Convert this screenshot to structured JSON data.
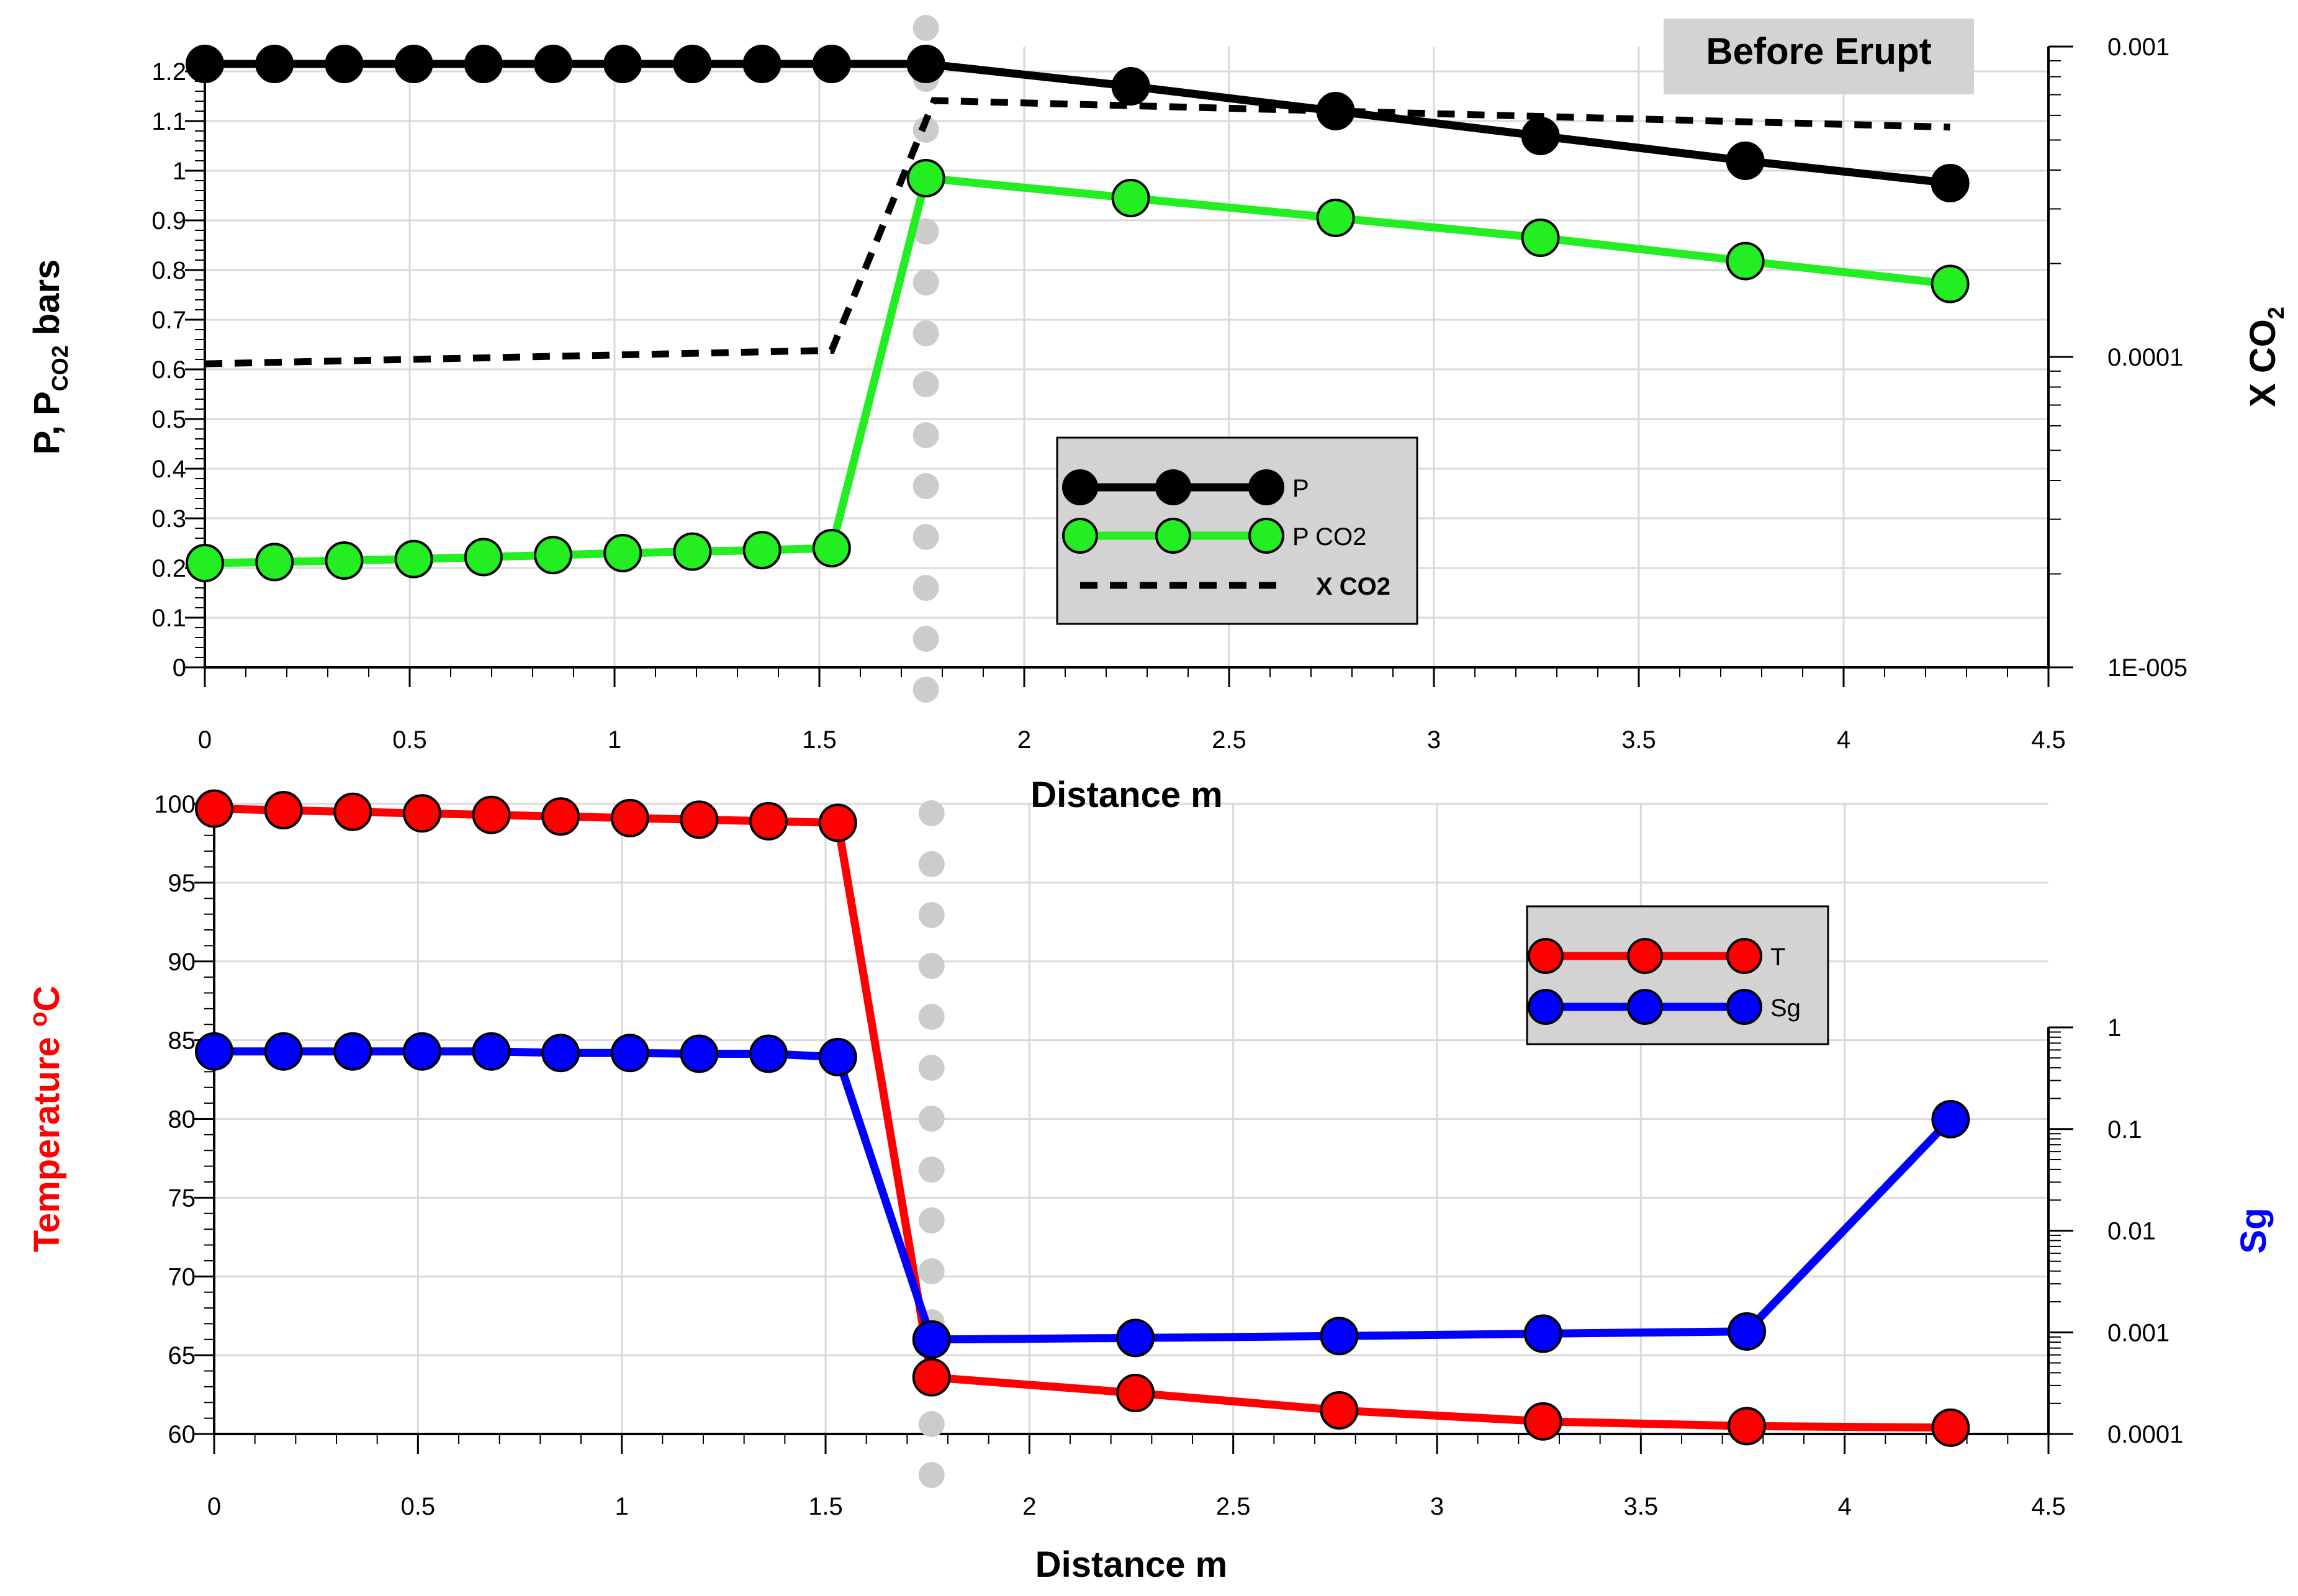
{
  "chart_data": [
    {
      "id": "top",
      "type": "line",
      "title": "Before Erupt",
      "xlabel": "Distance m",
      "ylabel_parts": [
        "P, P",
        "CO2",
        " bars"
      ],
      "y2label_parts": [
        "X CO",
        "2"
      ],
      "xlim": [
        0,
        4.5
      ],
      "ylim": [
        0,
        1.25
      ],
      "y2lim": [
        1e-05,
        0.001
      ],
      "y2scale": "log",
      "x_ticks": [
        "0",
        "0.5",
        "1",
        "1.5",
        "2",
        "2.5",
        "3",
        "3.5",
        "4",
        "4.5"
      ],
      "y_ticks": [
        "0",
        "0.1",
        "0.2",
        "0.3",
        "0.4",
        "0.5",
        "0.6",
        "0.7",
        "0.8",
        "0.9",
        "1",
        "1.1",
        "1.2"
      ],
      "y2_ticks": [
        "1E-005",
        "0.0001",
        "0.001"
      ],
      "grid": true,
      "legend_position": "center-right",
      "series": [
        {
          "name": "P",
          "color": "#000000",
          "marker": true,
          "axis": "left",
          "x": [
            0,
            0.17,
            0.34,
            0.51,
            0.68,
            0.85,
            1.02,
            1.19,
            1.36,
            1.53,
            1.76,
            2.26,
            2.76,
            3.26,
            3.76,
            4.26
          ],
          "y": [
            1.215,
            1.215,
            1.215,
            1.215,
            1.215,
            1.215,
            1.215,
            1.215,
            1.215,
            1.215,
            1.215,
            1.17,
            1.12,
            1.07,
            1.02,
            0.975
          ]
        },
        {
          "name": "P CO2",
          "color": "#22ee22",
          "marker": true,
          "axis": "left",
          "x": [
            0,
            0.17,
            0.34,
            0.51,
            0.68,
            0.85,
            1.02,
            1.19,
            1.36,
            1.53,
            1.76,
            2.26,
            2.76,
            3.26,
            3.76,
            4.26
          ],
          "y": [
            0.21,
            0.212,
            0.215,
            0.218,
            0.222,
            0.226,
            0.23,
            0.233,
            0.236,
            0.24,
            0.985,
            0.945,
            0.905,
            0.865,
            0.818,
            0.772
          ]
        },
        {
          "name": "X CO2",
          "color": "#000000",
          "marker": false,
          "dashed": true,
          "axis": "right",
          "x": [
            0,
            1.53,
            1.78,
            4.26
          ],
          "y": [
            9.5e-05,
            0.000105,
            0.00067,
            0.00055
          ]
        }
      ],
      "annotations": [
        {
          "type": "vline-dotted",
          "x": 1.76,
          "color": "#cccccc"
        }
      ]
    },
    {
      "id": "bottom",
      "type": "line",
      "xlabel": "Distance m",
      "ylabel_parts": [
        "Temperature ",
        "o",
        "C"
      ],
      "y2label": "Sg",
      "xlim": [
        0,
        4.5
      ],
      "ylim": [
        60,
        100
      ],
      "y2lim": [
        0.0001,
        1
      ],
      "y2scale": "log",
      "x_ticks": [
        "0",
        "0.5",
        "1",
        "1.5",
        "2",
        "2.5",
        "3",
        "3.5",
        "4",
        "4.5"
      ],
      "y_ticks": [
        "60",
        "65",
        "70",
        "75",
        "80",
        "85",
        "90",
        "95",
        "100"
      ],
      "y2_ticks": [
        "0.0001",
        "0.001",
        "0.01",
        "0.1",
        "1"
      ],
      "grid": true,
      "legend_position": "top-right",
      "series": [
        {
          "name": "T",
          "color": "#ff0000",
          "marker": true,
          "axis": "left",
          "x": [
            0,
            0.17,
            0.34,
            0.51,
            0.68,
            0.85,
            1.02,
            1.19,
            1.36,
            1.53,
            1.76,
            2.26,
            2.76,
            3.26,
            3.76,
            4.26
          ],
          "y": [
            99.7,
            99.6,
            99.5,
            99.4,
            99.3,
            99.2,
            99.1,
            99.0,
            98.9,
            98.8,
            63.6,
            62.6,
            61.5,
            60.8,
            60.5,
            60.4
          ]
        },
        {
          "name": "Sg",
          "color": "#0000ff",
          "marker": true,
          "axis": "right",
          "x": [
            0,
            0.17,
            0.34,
            0.51,
            0.68,
            0.85,
            1.02,
            1.19,
            1.36,
            1.53,
            1.76,
            2.26,
            2.76,
            3.26,
            3.76,
            4.26
          ],
          "y": [
            0.58,
            0.58,
            0.58,
            0.58,
            0.58,
            0.56,
            0.56,
            0.55,
            0.55,
            0.51,
            0.00085,
            0.00088,
            0.00092,
            0.00097,
            0.00102,
            0.125
          ]
        }
      ],
      "annotations": [
        {
          "type": "vline-dotted",
          "x": 1.76,
          "color": "#cccccc"
        }
      ]
    }
  ]
}
